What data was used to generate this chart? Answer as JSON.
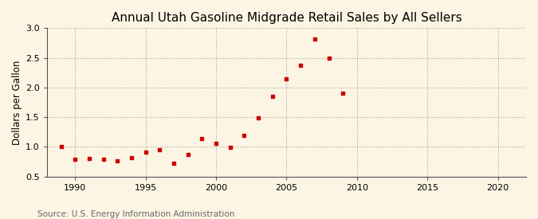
{
  "title": "Annual Utah Gasoline Midgrade Retail Sales by All Sellers",
  "ylabel": "Dollars per Gallon",
  "source": "Source: U.S. Energy Information Administration",
  "background_color": "#fdf5e4",
  "marker_color": "#cc0000",
  "years": [
    1989,
    1990,
    1991,
    1992,
    1993,
    1994,
    1995,
    1996,
    1997,
    1998,
    1999,
    2000,
    2001,
    2002,
    2003,
    2004,
    2005,
    2006,
    2007,
    2008,
    2009
  ],
  "values": [
    1.0,
    0.79,
    0.81,
    0.79,
    0.76,
    0.82,
    0.91,
    0.95,
    0.73,
    0.87,
    1.14,
    1.06,
    0.99,
    1.2,
    1.49,
    1.85,
    2.14,
    2.37,
    2.82,
    2.49,
    1.91
  ],
  "xlim": [
    1988,
    2022
  ],
  "ylim": [
    0.5,
    3.0
  ],
  "xticks": [
    1990,
    1995,
    2000,
    2005,
    2010,
    2015,
    2020
  ],
  "yticks": [
    0.5,
    1.0,
    1.5,
    2.0,
    2.5,
    3.0
  ],
  "grid_color": "#999999",
  "title_fontsize": 11,
  "label_fontsize": 8.5,
  "tick_fontsize": 8,
  "source_fontsize": 7.5
}
